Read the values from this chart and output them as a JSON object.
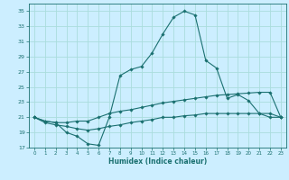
{
  "title": "",
  "xlabel": "Humidex (Indice chaleur)",
  "background_color": "#cceeff",
  "grid_color": "#aadddd",
  "line_color": "#1a7070",
  "xlim": [
    -0.5,
    23.5
  ],
  "ylim": [
    17,
    36
  ],
  "yticks": [
    17,
    19,
    21,
    23,
    25,
    27,
    29,
    31,
    33,
    35
  ],
  "xticks": [
    0,
    1,
    2,
    3,
    4,
    5,
    6,
    7,
    8,
    9,
    10,
    11,
    12,
    13,
    14,
    15,
    16,
    17,
    18,
    19,
    20,
    21,
    22,
    23
  ],
  "line1_x": [
    0,
    1,
    2,
    3,
    4,
    5,
    6,
    7,
    8,
    9,
    10,
    11,
    12,
    13,
    14,
    15,
    16,
    17,
    18,
    19,
    20,
    21,
    22,
    23
  ],
  "line1_y": [
    21.0,
    20.5,
    20.3,
    19.0,
    18.5,
    17.5,
    17.3,
    21.0,
    26.5,
    27.3,
    27.7,
    29.5,
    32.0,
    34.2,
    35.0,
    34.5,
    28.5,
    27.5,
    23.5,
    24.0,
    23.2,
    21.5,
    21.0,
    21.0
  ],
  "line2_x": [
    0,
    1,
    2,
    3,
    4,
    5,
    6,
    7,
    8,
    9,
    10,
    11,
    12,
    13,
    14,
    15,
    16,
    17,
    18,
    19,
    20,
    21,
    22,
    23
  ],
  "line2_y": [
    21.0,
    20.5,
    20.3,
    20.3,
    20.5,
    20.5,
    21.0,
    21.5,
    21.8,
    22.0,
    22.3,
    22.6,
    22.9,
    23.1,
    23.3,
    23.5,
    23.7,
    23.9,
    24.0,
    24.1,
    24.2,
    24.3,
    24.3,
    21.0
  ],
  "line3_x": [
    0,
    1,
    2,
    3,
    4,
    5,
    6,
    7,
    8,
    9,
    10,
    11,
    12,
    13,
    14,
    15,
    16,
    17,
    18,
    19,
    20,
    21,
    22,
    23
  ],
  "line3_y": [
    21.0,
    20.3,
    20.0,
    19.8,
    19.5,
    19.3,
    19.5,
    19.8,
    20.0,
    20.3,
    20.5,
    20.7,
    21.0,
    21.0,
    21.2,
    21.3,
    21.5,
    21.5,
    21.5,
    21.5,
    21.5,
    21.5,
    21.5,
    21.0
  ],
  "figsize": [
    3.2,
    2.0
  ],
  "dpi": 100
}
